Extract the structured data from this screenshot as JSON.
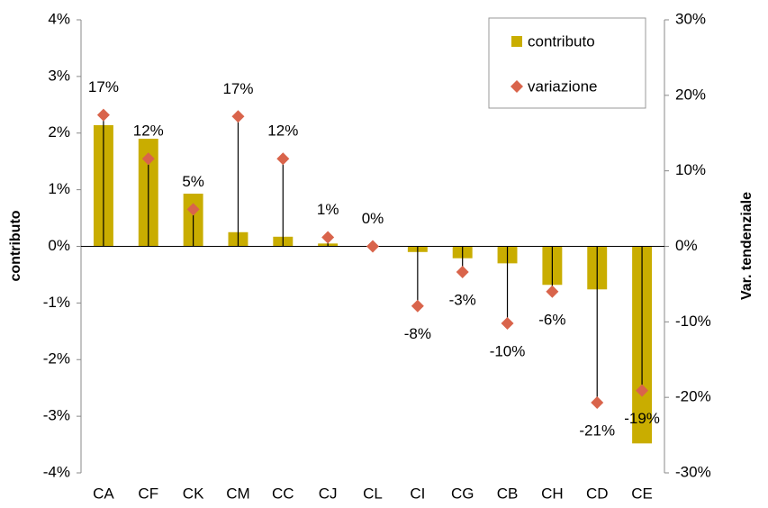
{
  "chart_data": {
    "type": "bar_dropline",
    "categories": [
      "CA",
      "CF",
      "CK",
      "CM",
      "CC",
      "CJ",
      "CL",
      "CI",
      "CG",
      "CB",
      "CH",
      "CD",
      "CE"
    ],
    "series": [
      {
        "name": "contributo",
        "color": "#c9ad00",
        "values": [
          2.14,
          1.9,
          0.93,
          0.25,
          0.17,
          0.05,
          0,
          -0.1,
          -0.21,
          -0.3,
          -0.68,
          -0.76,
          -3.48
        ]
      },
      {
        "name": "variazione",
        "color": "#d9644b",
        "axis": "y2",
        "values": [
          17.4,
          11.6,
          4.9,
          17.2,
          11.6,
          1.2,
          0,
          -7.9,
          -3.4,
          -10.2,
          -6.0,
          -20.7,
          -19.1
        ],
        "value_labels": [
          "17%",
          "12%",
          "5%",
          "17%",
          "12%",
          "1%",
          "0%",
          "-8%",
          "-3%",
          "-10%",
          "-6%",
          "-21%",
          "-19%"
        ]
      }
    ],
    "ylabel": "contributo",
    "y2label": "Var. tendenziale",
    "ylim": [
      -4,
      4
    ],
    "yticks": [
      {
        "value": -4,
        "label": "-4%"
      },
      {
        "value": -3,
        "label": "-3%"
      },
      {
        "value": -2,
        "label": "-2%"
      },
      {
        "value": -1,
        "label": "-1%"
      },
      {
        "value": 0,
        "label": "0%"
      },
      {
        "value": 1,
        "label": "1%"
      },
      {
        "value": 2,
        "label": "2%"
      },
      {
        "value": 3,
        "label": "3%"
      },
      {
        "value": 4,
        "label": "4%"
      }
    ],
    "y2lim": [
      -30,
      30
    ],
    "y2ticks": [
      {
        "value": -30,
        "label": "-30%"
      },
      {
        "value": -20,
        "label": "-20%"
      },
      {
        "value": -10,
        "label": "-10%"
      },
      {
        "value": 0,
        "label": "0%"
      },
      {
        "value": 10,
        "label": "10%"
      },
      {
        "value": 20,
        "label": "20%"
      },
      {
        "value": 30,
        "label": "30%"
      }
    ],
    "legend": "upper right"
  }
}
